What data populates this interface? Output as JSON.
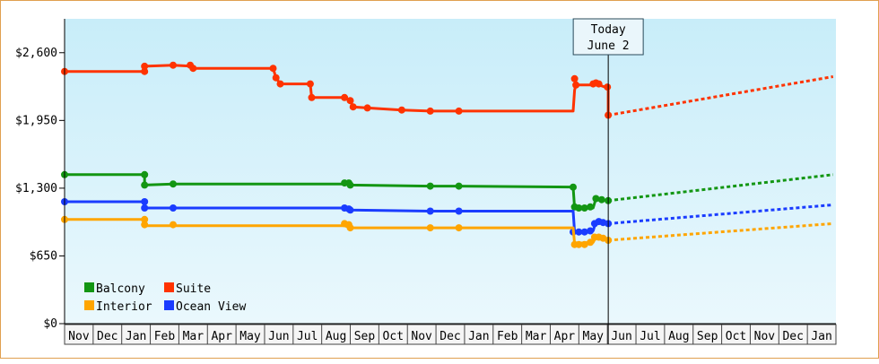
{
  "chart_data": {
    "type": "line",
    "title": "",
    "xlabel": "",
    "ylabel": "",
    "ylim": [
      0,
      2925
    ],
    "y_ticks": [
      0,
      650,
      1300,
      1950,
      2600
    ],
    "y_tick_labels": [
      "$0",
      "$650",
      "$1,300",
      "$1,950",
      "$2,600"
    ],
    "x_tick_labels": [
      "Nov",
      "Dec",
      "Jan",
      "Feb",
      "Mar",
      "Apr",
      "May",
      "Jun",
      "Jul",
      "Aug",
      "Sep",
      "Oct",
      "Nov",
      "Dec",
      "Jan",
      "Feb",
      "Mar",
      "Apr",
      "May",
      "Jun",
      "Jul",
      "Aug",
      "Sep",
      "Oct",
      "Nov",
      "Dec",
      "Jan"
    ],
    "today": {
      "line1": "Today",
      "line2": "June 2",
      "x": 19.03
    },
    "grid": false,
    "legend_position": "bottom-left",
    "series": [
      {
        "name": "Suite",
        "color": "#ff3300",
        "points": [
          [
            0,
            2420
          ],
          [
            2.8,
            2420
          ],
          [
            2.8,
            2470
          ],
          [
            3.8,
            2480
          ],
          [
            4.5,
            2470
          ],
          [
            4.55,
            2450
          ],
          [
            7.3,
            2450
          ],
          [
            7.4,
            2360
          ],
          [
            7.55,
            2300
          ],
          [
            8.6,
            2300
          ],
          [
            8.65,
            2170
          ],
          [
            9.8,
            2170
          ],
          [
            10.0,
            2140
          ],
          [
            10.1,
            2080
          ],
          [
            10.6,
            2070
          ],
          [
            11.8,
            2050
          ],
          [
            12.8,
            2040
          ],
          [
            13.8,
            2040
          ],
          [
            17.8,
            2040
          ],
          [
            17.85,
            2240
          ],
          [
            17.9,
            2290
          ],
          [
            18.5,
            2290
          ],
          [
            18.6,
            2300
          ],
          [
            19.03,
            2260
          ],
          [
            19.03,
            2000
          ]
        ],
        "markers": [
          [
            0,
            2420
          ],
          [
            2.8,
            2420
          ],
          [
            2.8,
            2470
          ],
          [
            3.8,
            2480
          ],
          [
            4.4,
            2480
          ],
          [
            4.5,
            2450
          ],
          [
            7.3,
            2450
          ],
          [
            7.4,
            2360
          ],
          [
            7.55,
            2300
          ],
          [
            8.6,
            2300
          ],
          [
            8.65,
            2170
          ],
          [
            9.8,
            2170
          ],
          [
            10.0,
            2140
          ],
          [
            10.1,
            2080
          ],
          [
            10.6,
            2070
          ],
          [
            11.8,
            2050
          ],
          [
            12.8,
            2040
          ],
          [
            13.8,
            2040
          ],
          [
            17.85,
            2350
          ],
          [
            17.9,
            2290
          ],
          [
            18.5,
            2300
          ],
          [
            18.6,
            2310
          ],
          [
            18.7,
            2300
          ],
          [
            19.0,
            2270
          ],
          [
            19.03,
            2000
          ]
        ],
        "forecast": [
          [
            19.03,
            2000
          ],
          [
            26.9,
            2370
          ]
        ]
      },
      {
        "name": "Balcony",
        "color": "#139613",
        "points": [
          [
            0,
            1430
          ],
          [
            2.8,
            1430
          ],
          [
            2.8,
            1330
          ],
          [
            3.8,
            1340
          ],
          [
            9.8,
            1340
          ],
          [
            10.0,
            1330
          ],
          [
            12.8,
            1320
          ],
          [
            13.8,
            1320
          ],
          [
            17.8,
            1310
          ],
          [
            17.85,
            1110
          ],
          [
            18.5,
            1110
          ],
          [
            18.6,
            1200
          ],
          [
            19.03,
            1180
          ]
        ],
        "markers": [
          [
            0,
            1430
          ],
          [
            2.8,
            1430
          ],
          [
            2.8,
            1330
          ],
          [
            3.8,
            1340
          ],
          [
            9.8,
            1350
          ],
          [
            9.95,
            1350
          ],
          [
            10.0,
            1330
          ],
          [
            12.8,
            1320
          ],
          [
            13.8,
            1320
          ],
          [
            17.8,
            1310
          ],
          [
            17.85,
            1120
          ],
          [
            18.0,
            1110
          ],
          [
            18.2,
            1110
          ],
          [
            18.4,
            1120
          ],
          [
            18.6,
            1200
          ],
          [
            18.8,
            1190
          ],
          [
            19.03,
            1180
          ]
        ],
        "forecast": [
          [
            19.03,
            1180
          ],
          [
            26.9,
            1430
          ]
        ]
      },
      {
        "name": "Ocean View",
        "color": "#1a3cff",
        "points": [
          [
            0,
            1170
          ],
          [
            2.8,
            1170
          ],
          [
            2.8,
            1110
          ],
          [
            3.8,
            1110
          ],
          [
            9.8,
            1110
          ],
          [
            10.0,
            1090
          ],
          [
            12.8,
            1080
          ],
          [
            13.8,
            1080
          ],
          [
            17.8,
            1080
          ],
          [
            17.85,
            880
          ],
          [
            18.5,
            890
          ],
          [
            18.6,
            980
          ],
          [
            19.03,
            960
          ]
        ],
        "markers": [
          [
            0,
            1170
          ],
          [
            2.8,
            1170
          ],
          [
            2.8,
            1110
          ],
          [
            3.8,
            1110
          ],
          [
            9.8,
            1110
          ],
          [
            9.95,
            1100
          ],
          [
            10.0,
            1090
          ],
          [
            12.8,
            1080
          ],
          [
            13.8,
            1080
          ],
          [
            17.8,
            880
          ],
          [
            18.0,
            880
          ],
          [
            18.2,
            880
          ],
          [
            18.4,
            890
          ],
          [
            18.55,
            960
          ],
          [
            18.7,
            980
          ],
          [
            18.85,
            970
          ],
          [
            19.03,
            960
          ]
        ],
        "forecast": [
          [
            19.03,
            960
          ],
          [
            26.9,
            1140
          ]
        ]
      },
      {
        "name": "Interior",
        "color": "#ffa500",
        "points": [
          [
            0,
            1000
          ],
          [
            2.8,
            1000
          ],
          [
            2.8,
            940
          ],
          [
            3.8,
            940
          ],
          [
            9.8,
            940
          ],
          [
            10.0,
            920
          ],
          [
            12.8,
            920
          ],
          [
            13.8,
            920
          ],
          [
            17.8,
            920
          ],
          [
            17.85,
            770
          ],
          [
            18.5,
            780
          ],
          [
            18.6,
            830
          ],
          [
            19.03,
            800
          ]
        ],
        "markers": [
          [
            0,
            1000
          ],
          [
            2.8,
            1000
          ],
          [
            2.8,
            950
          ],
          [
            3.8,
            950
          ],
          [
            9.8,
            960
          ],
          [
            9.95,
            950
          ],
          [
            10.0,
            920
          ],
          [
            12.8,
            920
          ],
          [
            13.8,
            920
          ],
          [
            17.85,
            760
          ],
          [
            18.0,
            760
          ],
          [
            18.2,
            760
          ],
          [
            18.4,
            780
          ],
          [
            18.55,
            830
          ],
          [
            18.7,
            830
          ],
          [
            18.85,
            820
          ],
          [
            19.03,
            800
          ]
        ],
        "forecast": [
          [
            19.03,
            800
          ],
          [
            26.9,
            960
          ]
        ]
      }
    ],
    "legend": [
      {
        "name": "Balcony",
        "color": "#139613"
      },
      {
        "name": "Suite",
        "color": "#ff3300"
      },
      {
        "name": "Interior",
        "color": "#ffa500"
      },
      {
        "name": "Ocean View",
        "color": "#1a3cff"
      }
    ]
  }
}
